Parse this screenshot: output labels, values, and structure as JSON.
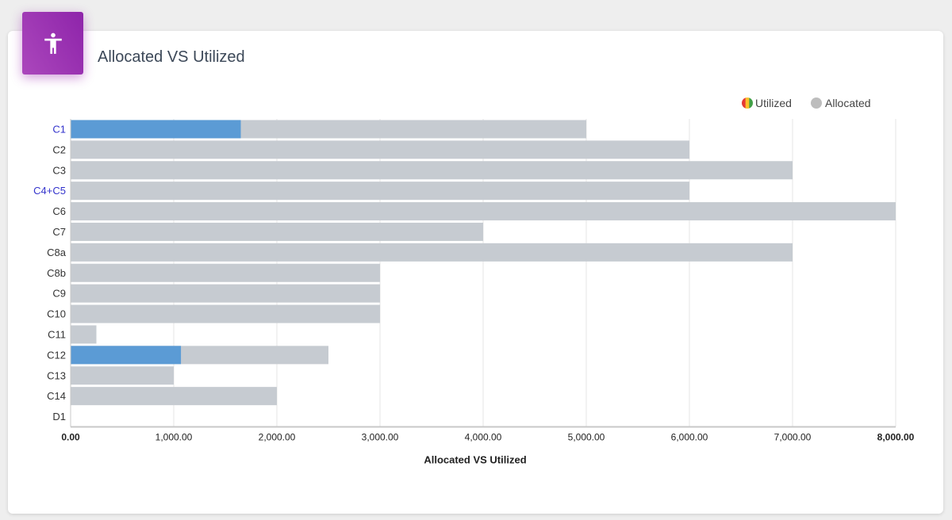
{
  "card": {
    "title": "Allocated VS Utilized",
    "icon": "accessibility-icon"
  },
  "colors": {
    "allocated": "#c6cbd1",
    "utilized": "#5b9bd5",
    "grid": "#e6e6e6",
    "axis": "#c8c8c8"
  },
  "chart_data": {
    "type": "bar",
    "orientation": "horizontal",
    "stacked": "overlay",
    "categories": [
      "C1",
      "C2",
      "C3",
      "C4+C5",
      "C6",
      "C7",
      "C8a",
      "C8b",
      "C9",
      "C10",
      "C11",
      "C12",
      "C13",
      "C14",
      "D1"
    ],
    "highlighted_categories": [
      "C1",
      "C4+C5"
    ],
    "series": [
      {
        "name": "Allocated",
        "values": [
          5000,
          6000,
          7000,
          6000,
          8000,
          4000,
          7000,
          3000,
          3000,
          3000,
          250,
          2500,
          1000,
          2000,
          0
        ]
      },
      {
        "name": "Utilized",
        "values": [
          1650,
          0,
          0,
          0,
          0,
          0,
          0,
          0,
          0,
          0,
          0,
          1070,
          0,
          0,
          0
        ]
      }
    ],
    "x_ticks": [
      "0.00",
      "1,000.00",
      "2,000.00",
      "3,000.00",
      "4,000.00",
      "5,000.00",
      "6,000.00",
      "7,000.00",
      "8,000.00"
    ],
    "xlim": [
      0,
      8000
    ],
    "xlabel": "Allocated VS Utilized",
    "legend": {
      "placement": "top-right",
      "entries": [
        {
          "label": "Utilized",
          "marker": "multicolor-circle"
        },
        {
          "label": "Allocated",
          "marker": "gray-circle"
        }
      ]
    },
    "grid": true
  }
}
